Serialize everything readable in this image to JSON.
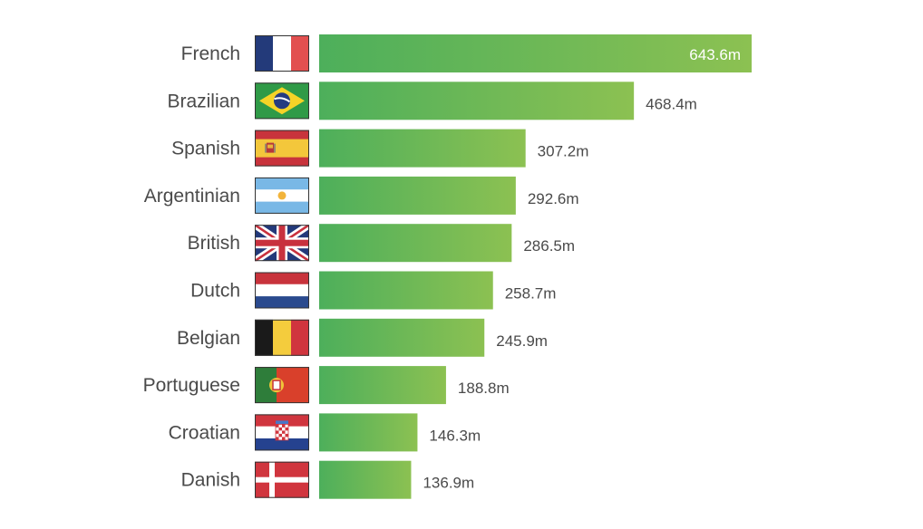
{
  "colors": {
    "bar_start": "#4daf5b",
    "bar_end": "#8cc152",
    "text": "#4a4a4a",
    "inside_label": "#ffffff"
  },
  "chart_data": {
    "type": "bar",
    "orientation": "horizontal",
    "title": "",
    "xlabel": "",
    "ylabel": "",
    "unit_suffix": "m",
    "xlim": [
      0,
      643.6
    ],
    "grid": false,
    "legend": "none",
    "categories": [
      "French",
      "Brazilian",
      "Spanish",
      "Argentinian",
      "British",
      "Dutch",
      "Belgian",
      "Portuguese",
      "Croatian",
      "Danish"
    ],
    "flag_icons": [
      "france-flag-icon",
      "brazil-flag-icon",
      "spain-flag-icon",
      "argentina-flag-icon",
      "uk-flag-icon",
      "netherlands-flag-icon",
      "belgium-flag-icon",
      "portugal-flag-icon",
      "croatia-flag-icon",
      "denmark-flag-icon"
    ],
    "values": [
      643.6,
      468.4,
      307.2,
      292.6,
      286.5,
      258.7,
      245.9,
      188.8,
      146.3,
      136.9
    ],
    "value_labels": [
      "643.6m",
      "468.4m",
      "307.2m",
      "292.6m",
      "286.5m",
      "258.7m",
      "245.9m",
      "188.8m",
      "146.3m",
      "136.9m"
    ]
  }
}
